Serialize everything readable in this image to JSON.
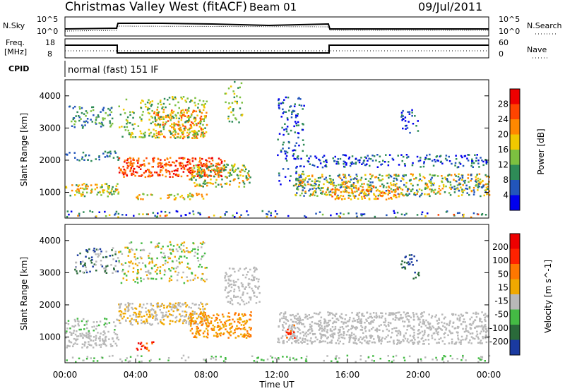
{
  "header": {
    "title": "Christmas Valley West (fitACF)",
    "beam": "Beam 01",
    "date": "09/Jul/2011"
  },
  "summary": {
    "nsky_label": "N.Sky",
    "nsky_ticks": [
      "10^5",
      "10^0"
    ],
    "nsearch_label": "N.Search",
    "freq_label_line1": "Freq.",
    "freq_label_line2": "[MHz]",
    "freq_ticks": [
      "18",
      "8"
    ],
    "nave_label": "Nave",
    "nave_ticks": [
      "60",
      "0"
    ],
    "cpid_label": "CPID",
    "cpid_text": "normal (fast) 151 IF"
  },
  "chart_data": [
    {
      "type": "heatmap",
      "panel": "power",
      "ylabel": "Slant Range [km]",
      "xlabel": "Time UT",
      "yticks": [
        "1000",
        "2000",
        "3000",
        "4000"
      ],
      "ylim": [
        200,
        4500
      ],
      "xlim": [
        0,
        24
      ],
      "colorbar_label": "Power [dB]",
      "colorbar_ticks": [
        "4",
        "8",
        "12",
        "16",
        "20",
        "24",
        "28"
      ],
      "colorbar_colors": [
        "#0000ee",
        "#2255bb",
        "#2e8b57",
        "#7cc040",
        "#f0c800",
        "#ff8800",
        "#ff4400",
        "#ee0000"
      ]
    },
    {
      "type": "heatmap",
      "panel": "velocity",
      "ylabel": "Slant Range [km]",
      "xlabel": "Time UT",
      "yticks": [
        "1000",
        "2000",
        "3000",
        "4000"
      ],
      "ylim": [
        200,
        4500
      ],
      "xlim": [
        0,
        24
      ],
      "colorbar_label": "Velocity [m s^-1]",
      "colorbar_ticks": [
        "200",
        "100",
        "50",
        "15",
        "-15",
        "-50",
        "-100",
        "-200"
      ],
      "colorbar_colors": [
        "#1a3aa0",
        "#2a6a3a",
        "#44bb44",
        "#b8b8b8",
        "#f0a800",
        "#ff7700",
        "#ff2200",
        "#ee0000"
      ]
    }
  ],
  "xaxis": {
    "ticks": [
      "00:00",
      "04:00",
      "08:00",
      "12:00",
      "16:00",
      "20:00",
      "00:00"
    ],
    "label": "Time UT"
  }
}
